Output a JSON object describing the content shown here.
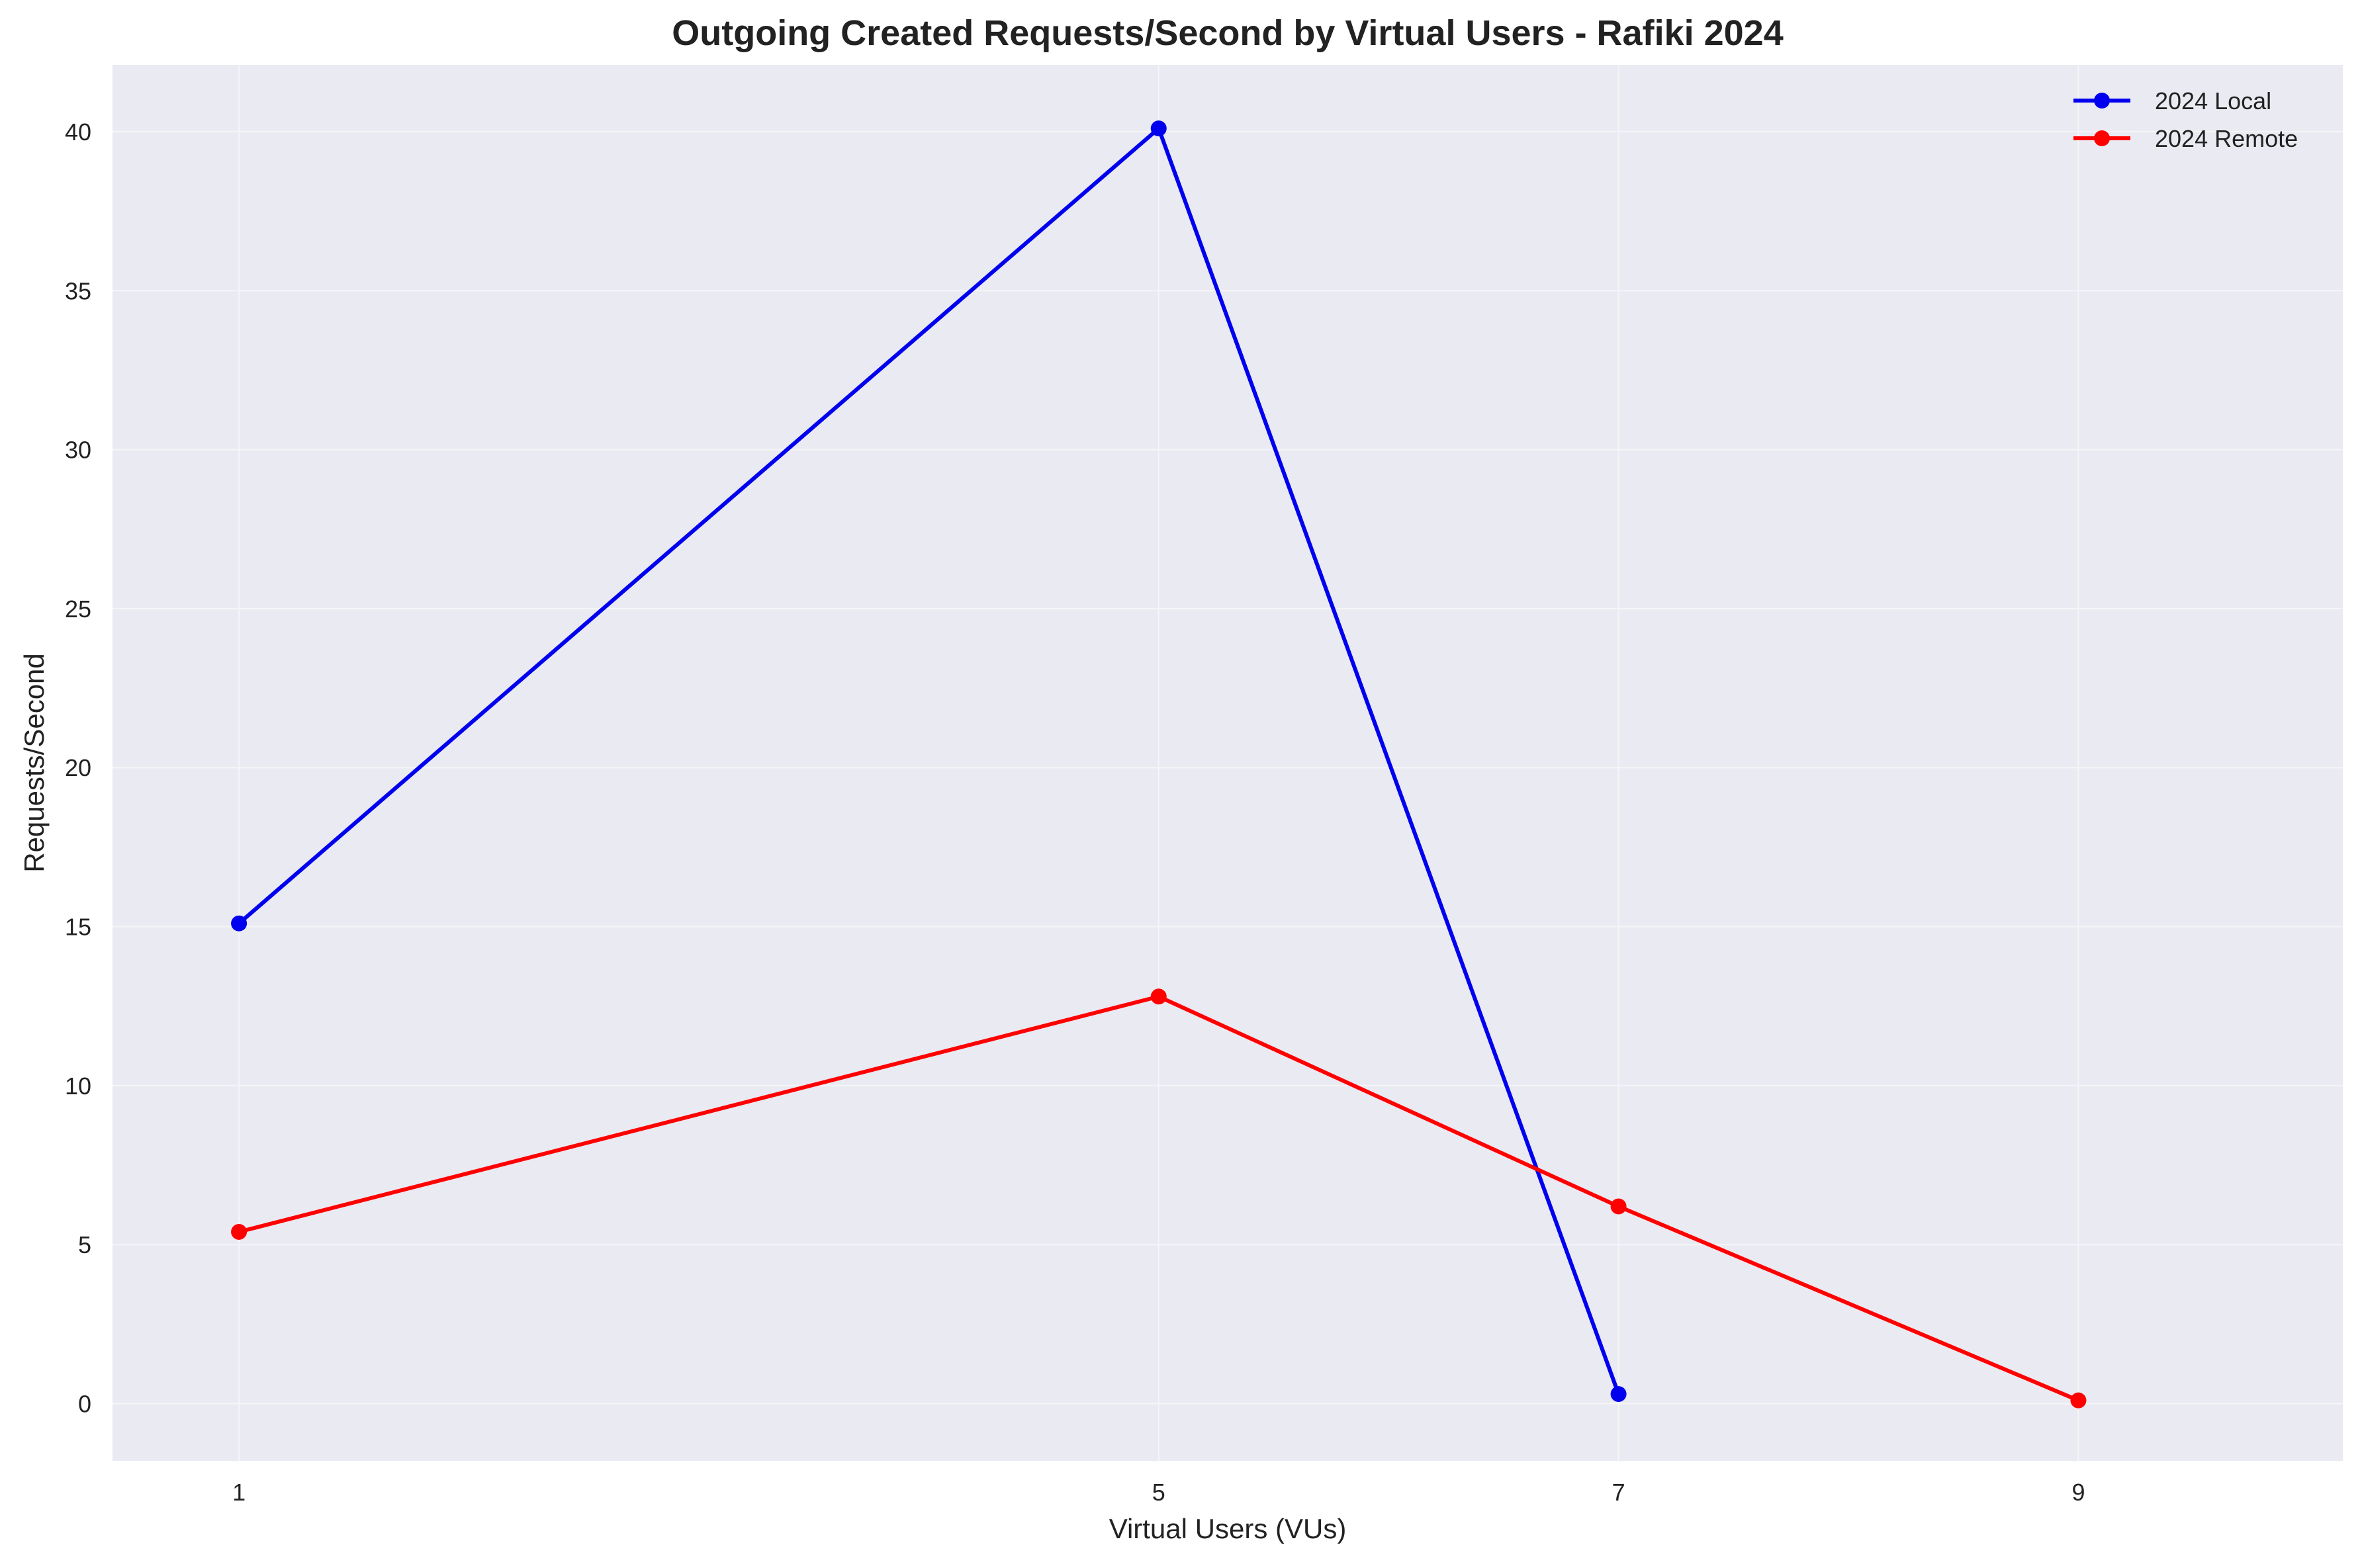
{
  "chart_data": {
    "type": "line",
    "title": "Outgoing Created Requests/Second by Virtual Users - Rafiki 2024",
    "xlabel": "Virtual Users (VUs)",
    "ylabel": "Requests/Second",
    "xlim": [
      0.45,
      10.15
    ],
    "ylim": [
      -1.8,
      42.1
    ],
    "x_ticks": [
      1,
      5,
      7,
      9
    ],
    "y_ticks": [
      0,
      5,
      10,
      15,
      20,
      25,
      30,
      35,
      40
    ],
    "grid": true,
    "legend_position": "top-right",
    "series": [
      {
        "name": "2024 Local",
        "color": "#0000ee",
        "x": [
          1,
          5,
          7
        ],
        "y": [
          15.1,
          40.1,
          0.3
        ]
      },
      {
        "name": "2024 Remote",
        "color": "#ff0000",
        "x": [
          1,
          5,
          7,
          9
        ],
        "y": [
          5.4,
          12.8,
          6.2,
          0.1
        ]
      }
    ]
  },
  "colors": {
    "plot_background": "#eaeaf2",
    "grid": "#f5f5f8"
  }
}
